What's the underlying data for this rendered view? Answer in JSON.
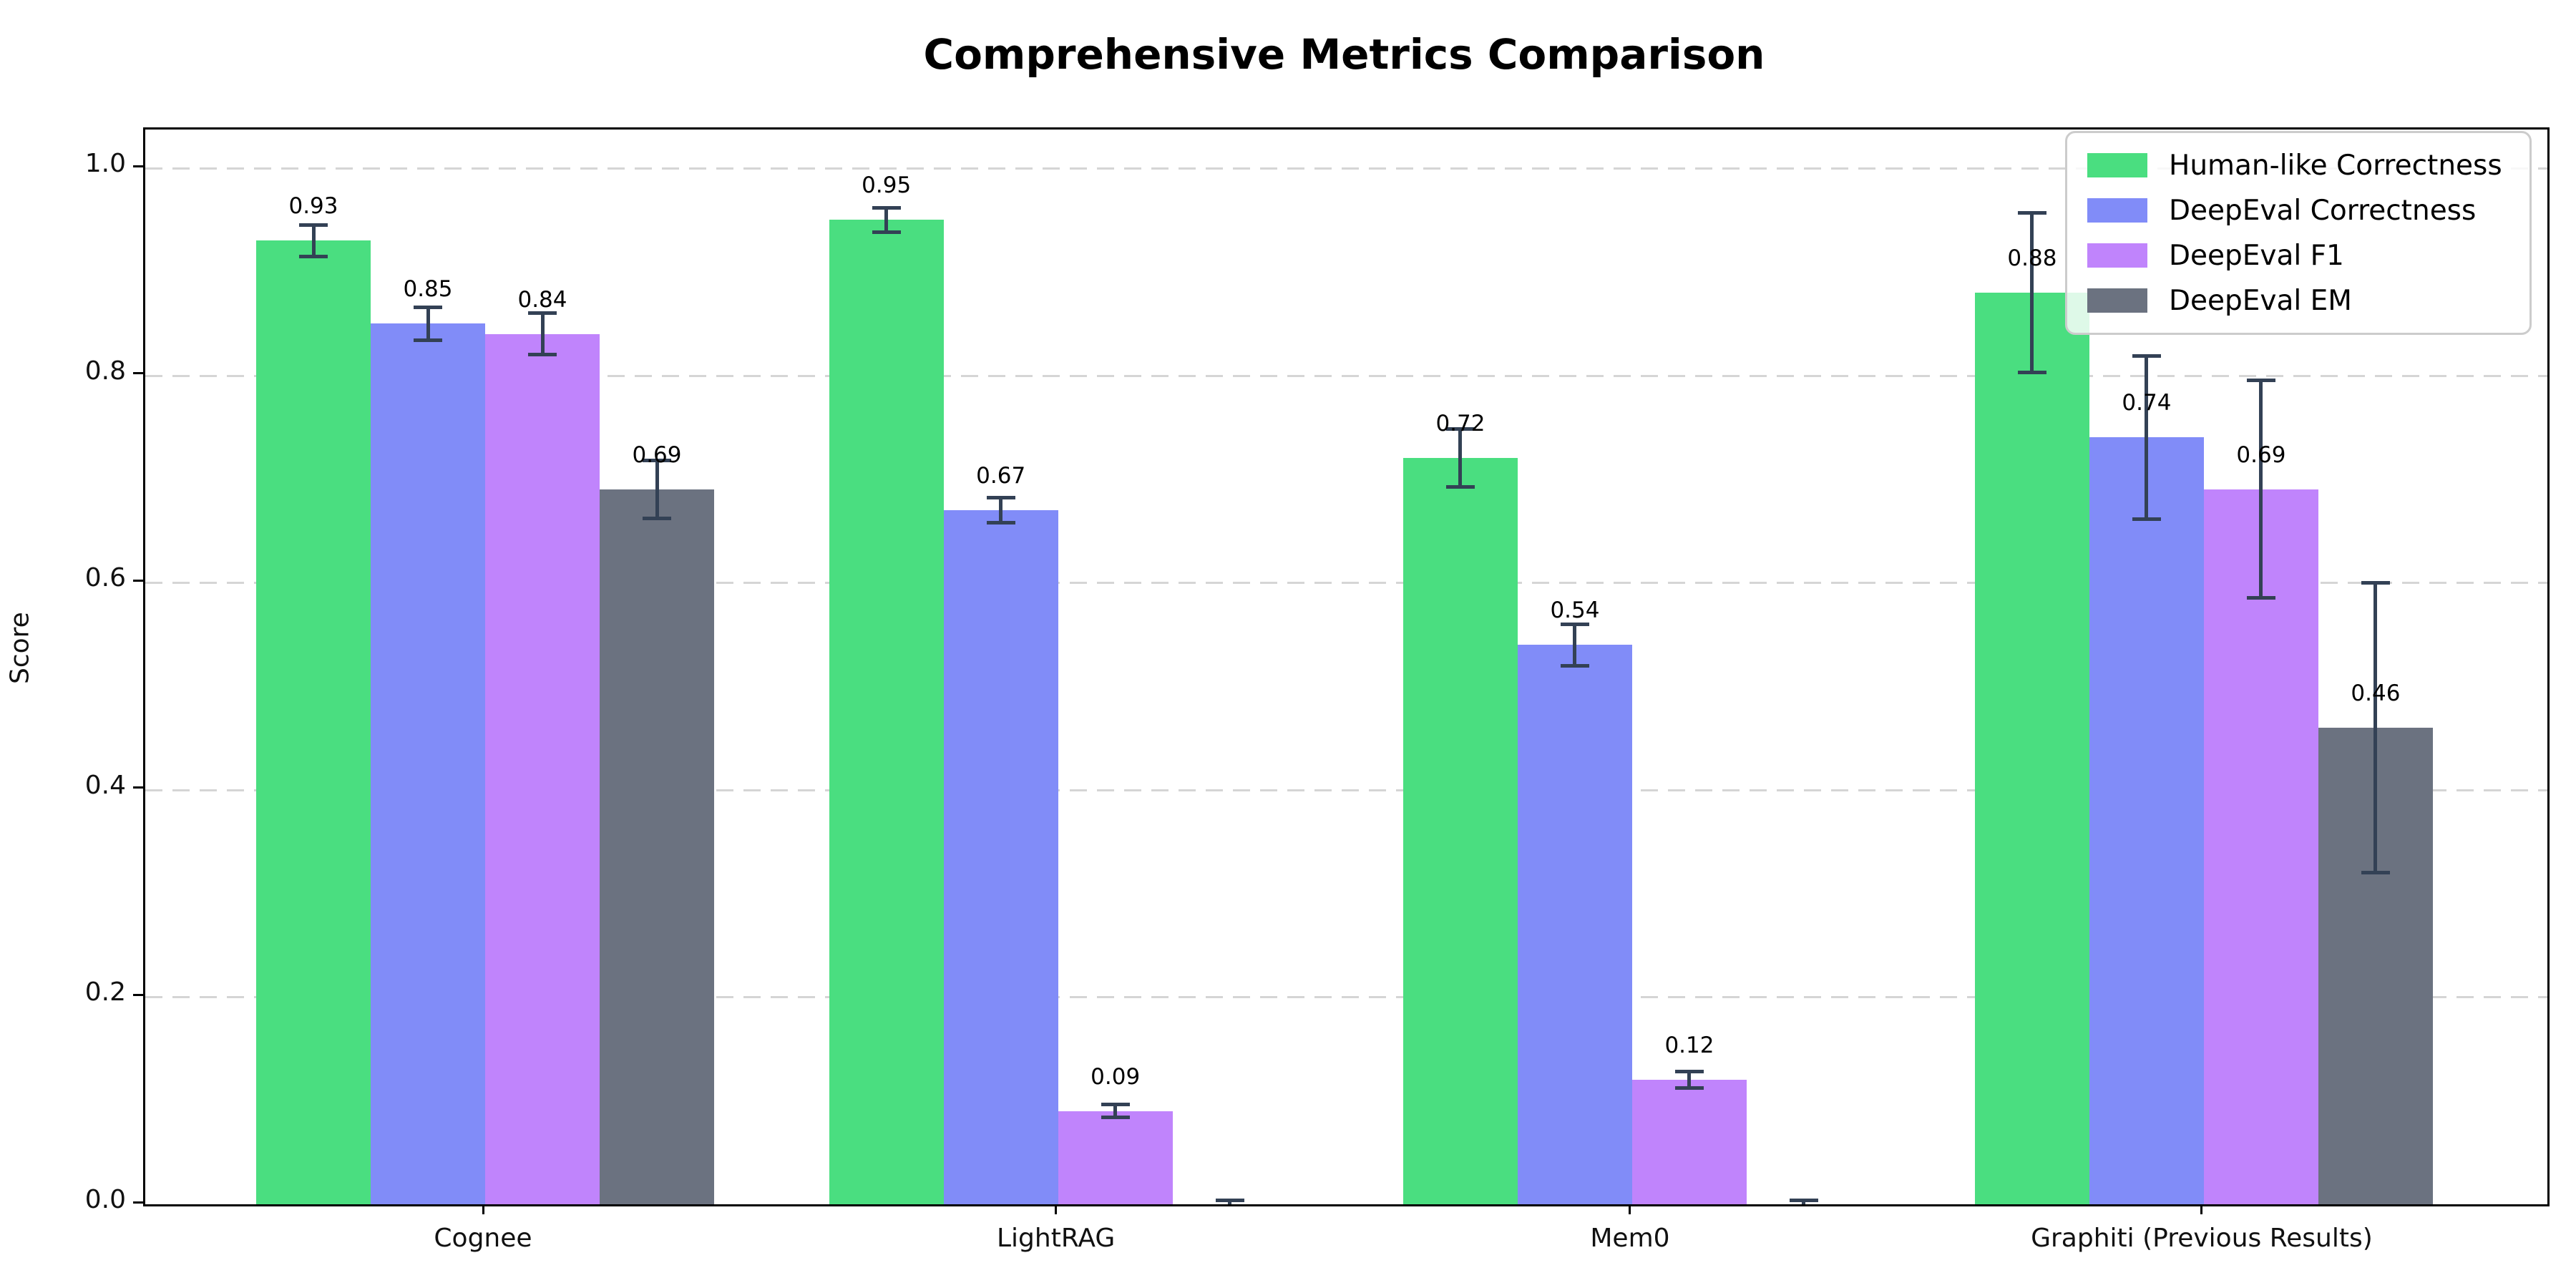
{
  "title": "Comprehensive Metrics Comparison",
  "chart_data": {
    "type": "bar",
    "title": "Comprehensive Metrics Comparison",
    "xlabel": "",
    "ylabel": "Score",
    "categories": [
      "Cognee",
      "LightRAG",
      "Mem0",
      "Graphiti (Previous Results)"
    ],
    "series": [
      {
        "name": "Human-like Correctness",
        "color": "#4ade80",
        "values": [
          0.93,
          0.95,
          0.72,
          0.88
        ],
        "errors": [
          0.015,
          0.012,
          0.028,
          0.077
        ],
        "value_labels": [
          "0.93",
          "0.95",
          "0.72",
          "0.88"
        ]
      },
      {
        "name": "DeepEval Correctness",
        "color": "#818cf8",
        "values": [
          0.85,
          0.67,
          0.54,
          0.74
        ],
        "errors": [
          0.016,
          0.012,
          0.02,
          0.079
        ],
        "value_labels": [
          "0.85",
          "0.67",
          "0.54",
          "0.74"
        ]
      },
      {
        "name": "DeepEval F1",
        "color": "#c084fc",
        "values": [
          0.84,
          0.09,
          0.12,
          0.69
        ],
        "errors": [
          0.02,
          0.006,
          0.008,
          0.105
        ],
        "value_labels": [
          "0.84",
          "0.09",
          "0.12",
          "0.69"
        ]
      },
      {
        "name": "DeepEval EM",
        "color": "#6b7280",
        "values": [
          0.69,
          0.0,
          0.0,
          0.46
        ],
        "errors": [
          0.028,
          0.004,
          0.004,
          0.14
        ],
        "value_labels": [
          "0.69",
          null,
          null,
          "0.46"
        ]
      }
    ],
    "ytick_labels": [
      "0.0",
      "0.2",
      "0.4",
      "0.6",
      "0.8",
      "1.0"
    ],
    "yticks": [
      0.0,
      0.2,
      0.4,
      0.6,
      0.8,
      1.0
    ],
    "ylim": [
      0,
      1.037
    ],
    "grid": "horizontal-dashed",
    "gridline_color": "#d5d5d5",
    "legend_position": "upper-right",
    "error_bar_color": "#334155",
    "background": "#ffffff"
  }
}
